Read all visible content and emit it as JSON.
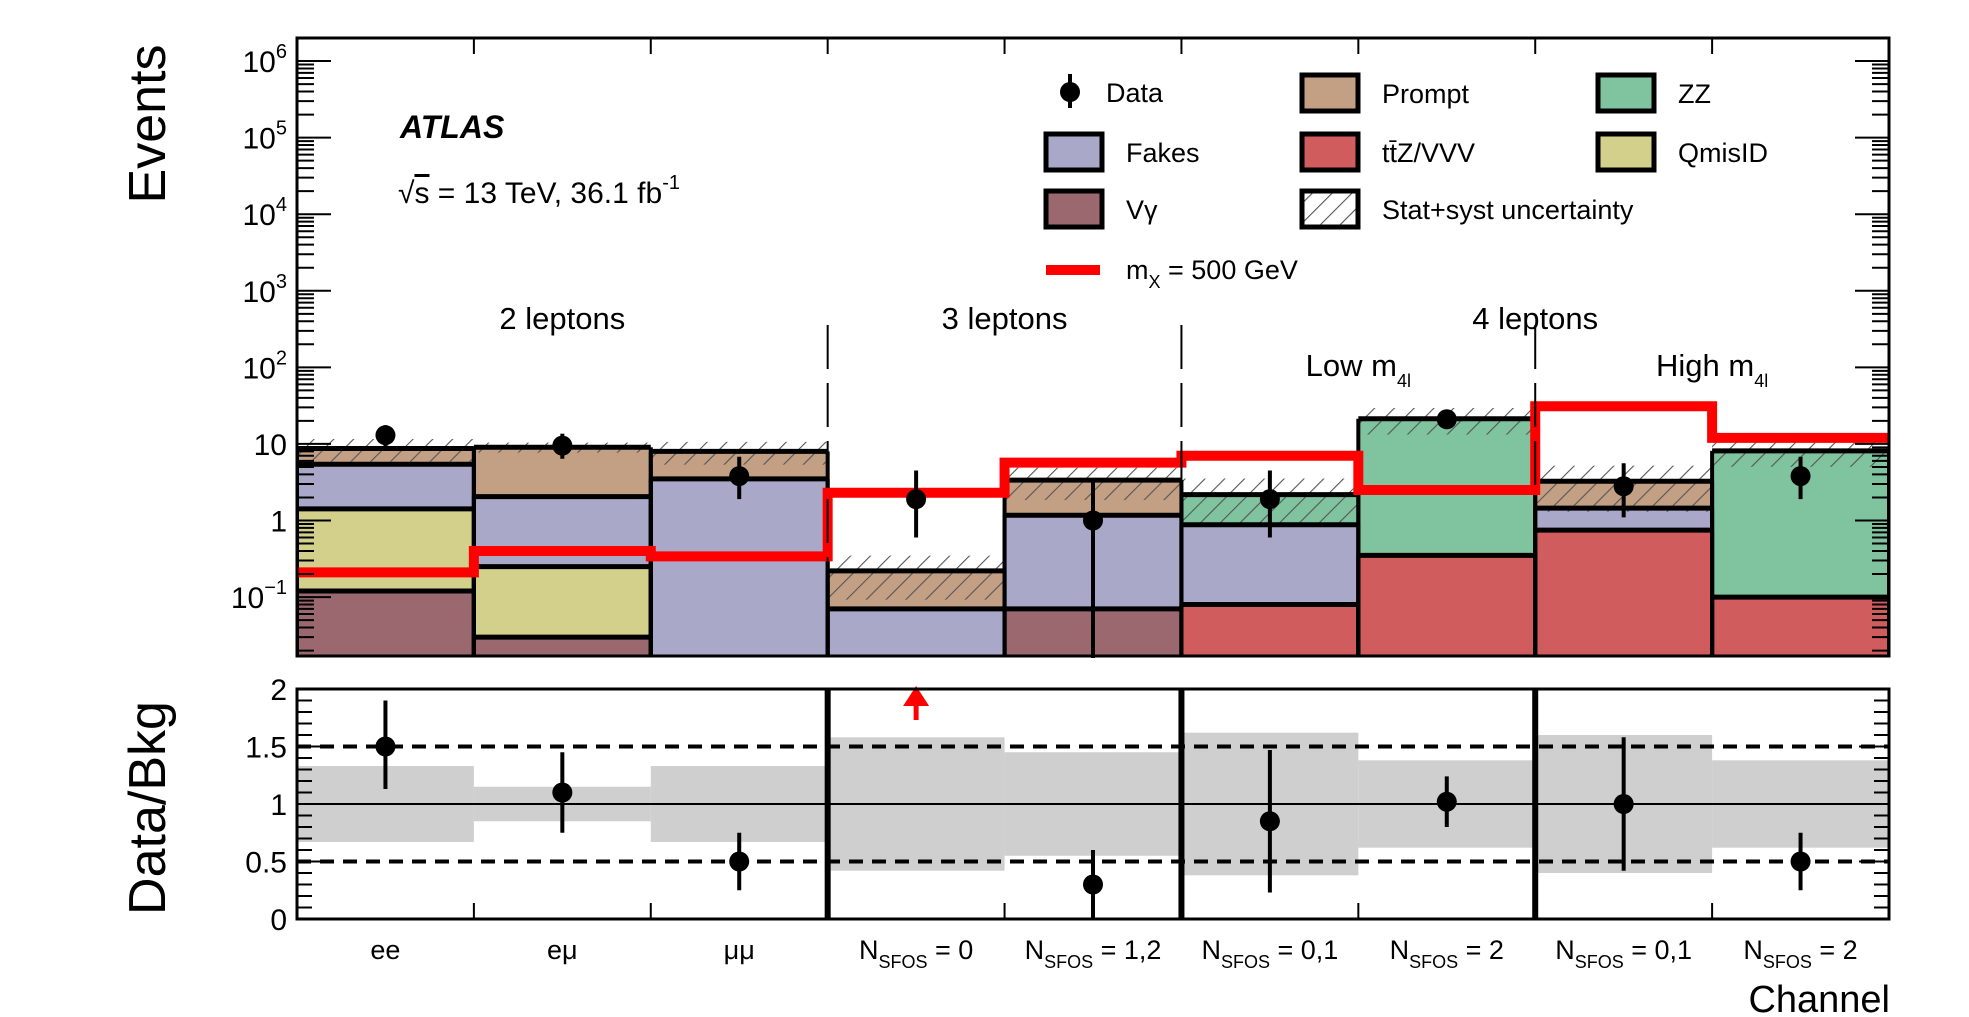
{
  "chart_data": {
    "type": "bar",
    "experiment": "ATLAS",
    "energy_label": "√s = 13 TeV, 36.1 fb⁻¹",
    "energy_parts": {
      "sqrt": "√",
      "s": "s",
      "text": " = 13 TeV, 36.1 fb",
      "sup": "-1"
    },
    "xlabel": "Channel",
    "ylabel_top": "Events",
    "ylabel_bottom": "Data/Bkg",
    "y_scale": "log",
    "ylim_top": [
      0.017,
      2000000
    ],
    "ylim_bottom": [
      0,
      2
    ],
    "top_ticks": [
      {
        "v": 1000000,
        "base": "10",
        "exp": "6"
      },
      {
        "v": 100000,
        "base": "10",
        "exp": "5"
      },
      {
        "v": 10000,
        "base": "10",
        "exp": "4"
      },
      {
        "v": 1000,
        "base": "10",
        "exp": "3"
      },
      {
        "v": 100,
        "base": "10",
        "exp": "2"
      },
      {
        "v": 10,
        "base": "10",
        "exp": ""
      },
      {
        "v": 1,
        "base": "1",
        "exp": ""
      },
      {
        "v": 0.1,
        "base": "10",
        "exp": "−1"
      }
    ],
    "bottom_ticks": [
      {
        "v": 0,
        "label": "0"
      },
      {
        "v": 0.5,
        "label": "0.5"
      },
      {
        "v": 1,
        "label": "1"
      },
      {
        "v": 1.5,
        "label": "1.5"
      },
      {
        "v": 2,
        "label": "2"
      }
    ],
    "categories": [
      {
        "main": "ee",
        "sub": "",
        "tail": ""
      },
      {
        "main": "eμ",
        "sub": "",
        "tail": ""
      },
      {
        "main": "μμ",
        "sub": "",
        "tail": ""
      },
      {
        "main": "N",
        "sub": "SFOS",
        "tail": " = 0"
      },
      {
        "main": "N",
        "sub": "SFOS",
        "tail": " = 1,2"
      },
      {
        "main": "N",
        "sub": "SFOS",
        "tail": " = 0,1"
      },
      {
        "main": "N",
        "sub": "SFOS",
        "tail": " = 2"
      },
      {
        "main": "N",
        "sub": "SFOS",
        "tail": " = 0,1"
      },
      {
        "main": "N",
        "sub": "SFOS",
        "tail": " = 2"
      }
    ],
    "regions": [
      {
        "label": "2 leptons",
        "sub": "",
        "from": 0,
        "to": 3,
        "row": 0
      },
      {
        "label": "3 leptons",
        "sub": "",
        "from": 3,
        "to": 5,
        "row": 0
      },
      {
        "label": "4 leptons",
        "sub": "",
        "from": 5,
        "to": 9,
        "row": 0
      },
      {
        "label": "Low m",
        "sub": "4l",
        "from": 5,
        "to": 7,
        "row": 1
      },
      {
        "label": "High m",
        "sub": "4l",
        "from": 7,
        "to": 9,
        "row": 1
      }
    ],
    "region_dividers": [
      3,
      5,
      7
    ],
    "series": [
      {
        "name": "Vγ",
        "color": "#9c6870",
        "values": [
          0.12,
          0.03,
          0,
          0,
          0.07,
          0,
          0,
          0,
          0
        ]
      },
      {
        "name": "tt̄Z/VVV",
        "color": "#d05c5e",
        "values": [
          0,
          0,
          0,
          0,
          0,
          0.08,
          0.35,
          0.75,
          0.1
        ]
      },
      {
        "name": "QmisID",
        "color": "#d2d08a",
        "values": [
          1.3,
          0.22,
          0,
          0,
          0,
          0,
          0,
          0,
          0
        ]
      },
      {
        "name": "Fakes",
        "color": "#aaa8c8",
        "values": [
          4.0,
          1.8,
          3.5,
          0.07,
          1.1,
          0.8,
          0,
          0.7,
          0
        ]
      },
      {
        "name": "ZZ",
        "color": "#7fc39f",
        "values": [
          0,
          0,
          0,
          0,
          0,
          1.3,
          21.0,
          0,
          8.0
        ]
      },
      {
        "name": "Prompt",
        "color": "#c39f84",
        "values": [
          3.3,
          7.0,
          4.5,
          0.15,
          2.2,
          0,
          0,
          1.8,
          0
        ]
      }
    ],
    "uncertainty": {
      "name": "Stat+syst uncertainty",
      "rel_err": [
        0.33,
        0.15,
        0.33,
        0.58,
        0.45,
        0.62,
        0.38,
        0.6,
        0.38
      ]
    },
    "data": {
      "name": "Data",
      "values": [
        13,
        9.5,
        3.8,
        1.9,
        1.0,
        1.9,
        21,
        2.8,
        3.8
      ],
      "err_low": [
        3.6,
        3.1,
        1.9,
        1.3,
        1.0,
        1.3,
        4.6,
        1.7,
        1.9
      ],
      "err_high": [
        4.6,
        4.1,
        3.0,
        2.6,
        2.3,
        2.6,
        5.6,
        2.8,
        3.0
      ]
    },
    "signal": {
      "name": "m",
      "name_sub": "X",
      "name_tail": " = 500 GeV",
      "color": "#ff0000",
      "values": [
        0.21,
        0.4,
        0.34,
        2.3,
        5.7,
        7.0,
        2.5,
        31,
        12
      ]
    },
    "ratio": {
      "values": [
        1.5,
        1.1,
        0.5,
        null,
        0.3,
        0.85,
        1.02,
        1.0,
        0.5
      ],
      "err_low": [
        0.37,
        0.35,
        0.25,
        null,
        0.3,
        0.62,
        0.22,
        0.58,
        0.25
      ],
      "err_high": [
        0.4,
        0.35,
        0.25,
        null,
        0.3,
        0.62,
        0.22,
        0.58,
        0.25
      ],
      "offscale_arrow_bins": [
        3
      ],
      "reference_lines": [
        0.5,
        1,
        1.5
      ]
    },
    "legend_placement": "top-right"
  }
}
